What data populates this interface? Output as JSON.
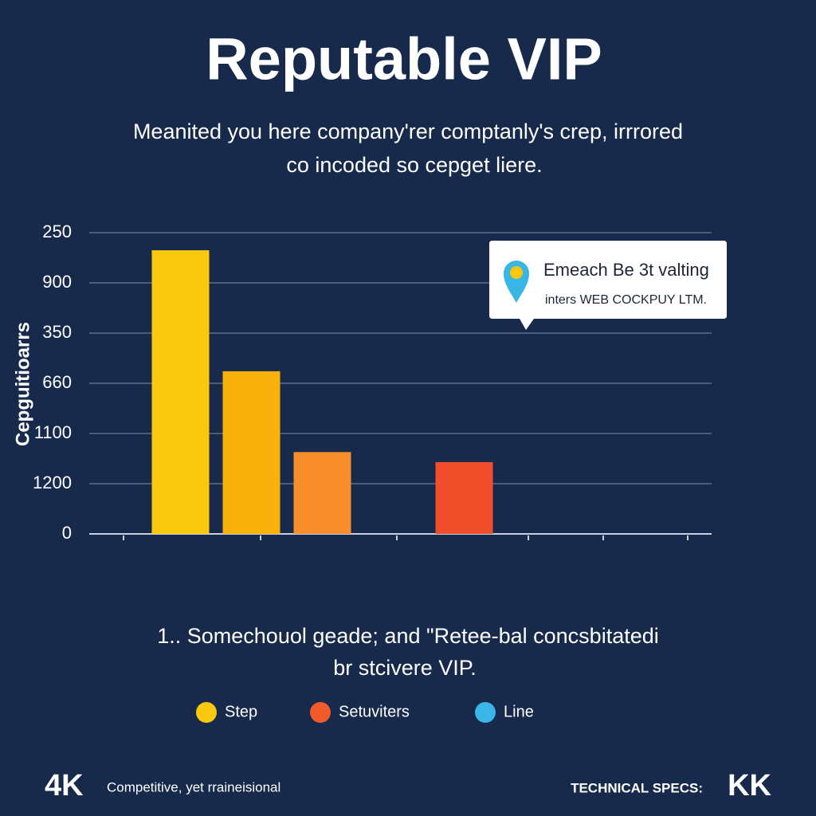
{
  "chart_data": {
    "type": "bar",
    "title": "Reputable VIP",
    "subtitle": [
      "Meanited you here company'rer comptanly's crep, irrrored",
      "co incoded so cepget liere."
    ],
    "y_label": "Cepguitioarrs",
    "categories": [
      null,
      null,
      null,
      null,
      null
    ],
    "values": [
      5.65,
      3.24,
      1.63,
      null,
      1.43
    ],
    "colors": [
      "#fac80c",
      "#f8b00b",
      "#f78e2b",
      null,
      "#f14e2b"
    ],
    "ylim": [
      0,
      6
    ],
    "yticks": [
      {
        "value": 0,
        "label": "0"
      },
      {
        "value": 1,
        "label": "1200"
      },
      {
        "value": 2,
        "label": "1100"
      },
      {
        "value": 3,
        "label": "660"
      },
      {
        "value": 4,
        "label": "350"
      },
      {
        "value": 5,
        "label": "900"
      },
      {
        "value": 6,
        "label": "250"
      }
    ],
    "grid": true,
    "callout": {
      "title": "Emeach Be 3t valting",
      "text": "inters WEB COCKPUY LTM."
    },
    "caption": [
      "1.. Somechouol geade; and \"Retee-bal concsbitatedi",
      "br stcivere VIP."
    ],
    "legend": [
      {
        "name": "Step",
        "color": "#fac80c"
      },
      {
        "name": "Setuviters",
        "color": "#f35a2a"
      },
      {
        "name": "Line",
        "color": "#3ab6e6"
      }
    ],
    "footer": {
      "badge": "4K",
      "text": "Competitive, yet rraineisional",
      "specs": "TECHNICAL SPECS:",
      "specs_badge": "KK"
    }
  }
}
